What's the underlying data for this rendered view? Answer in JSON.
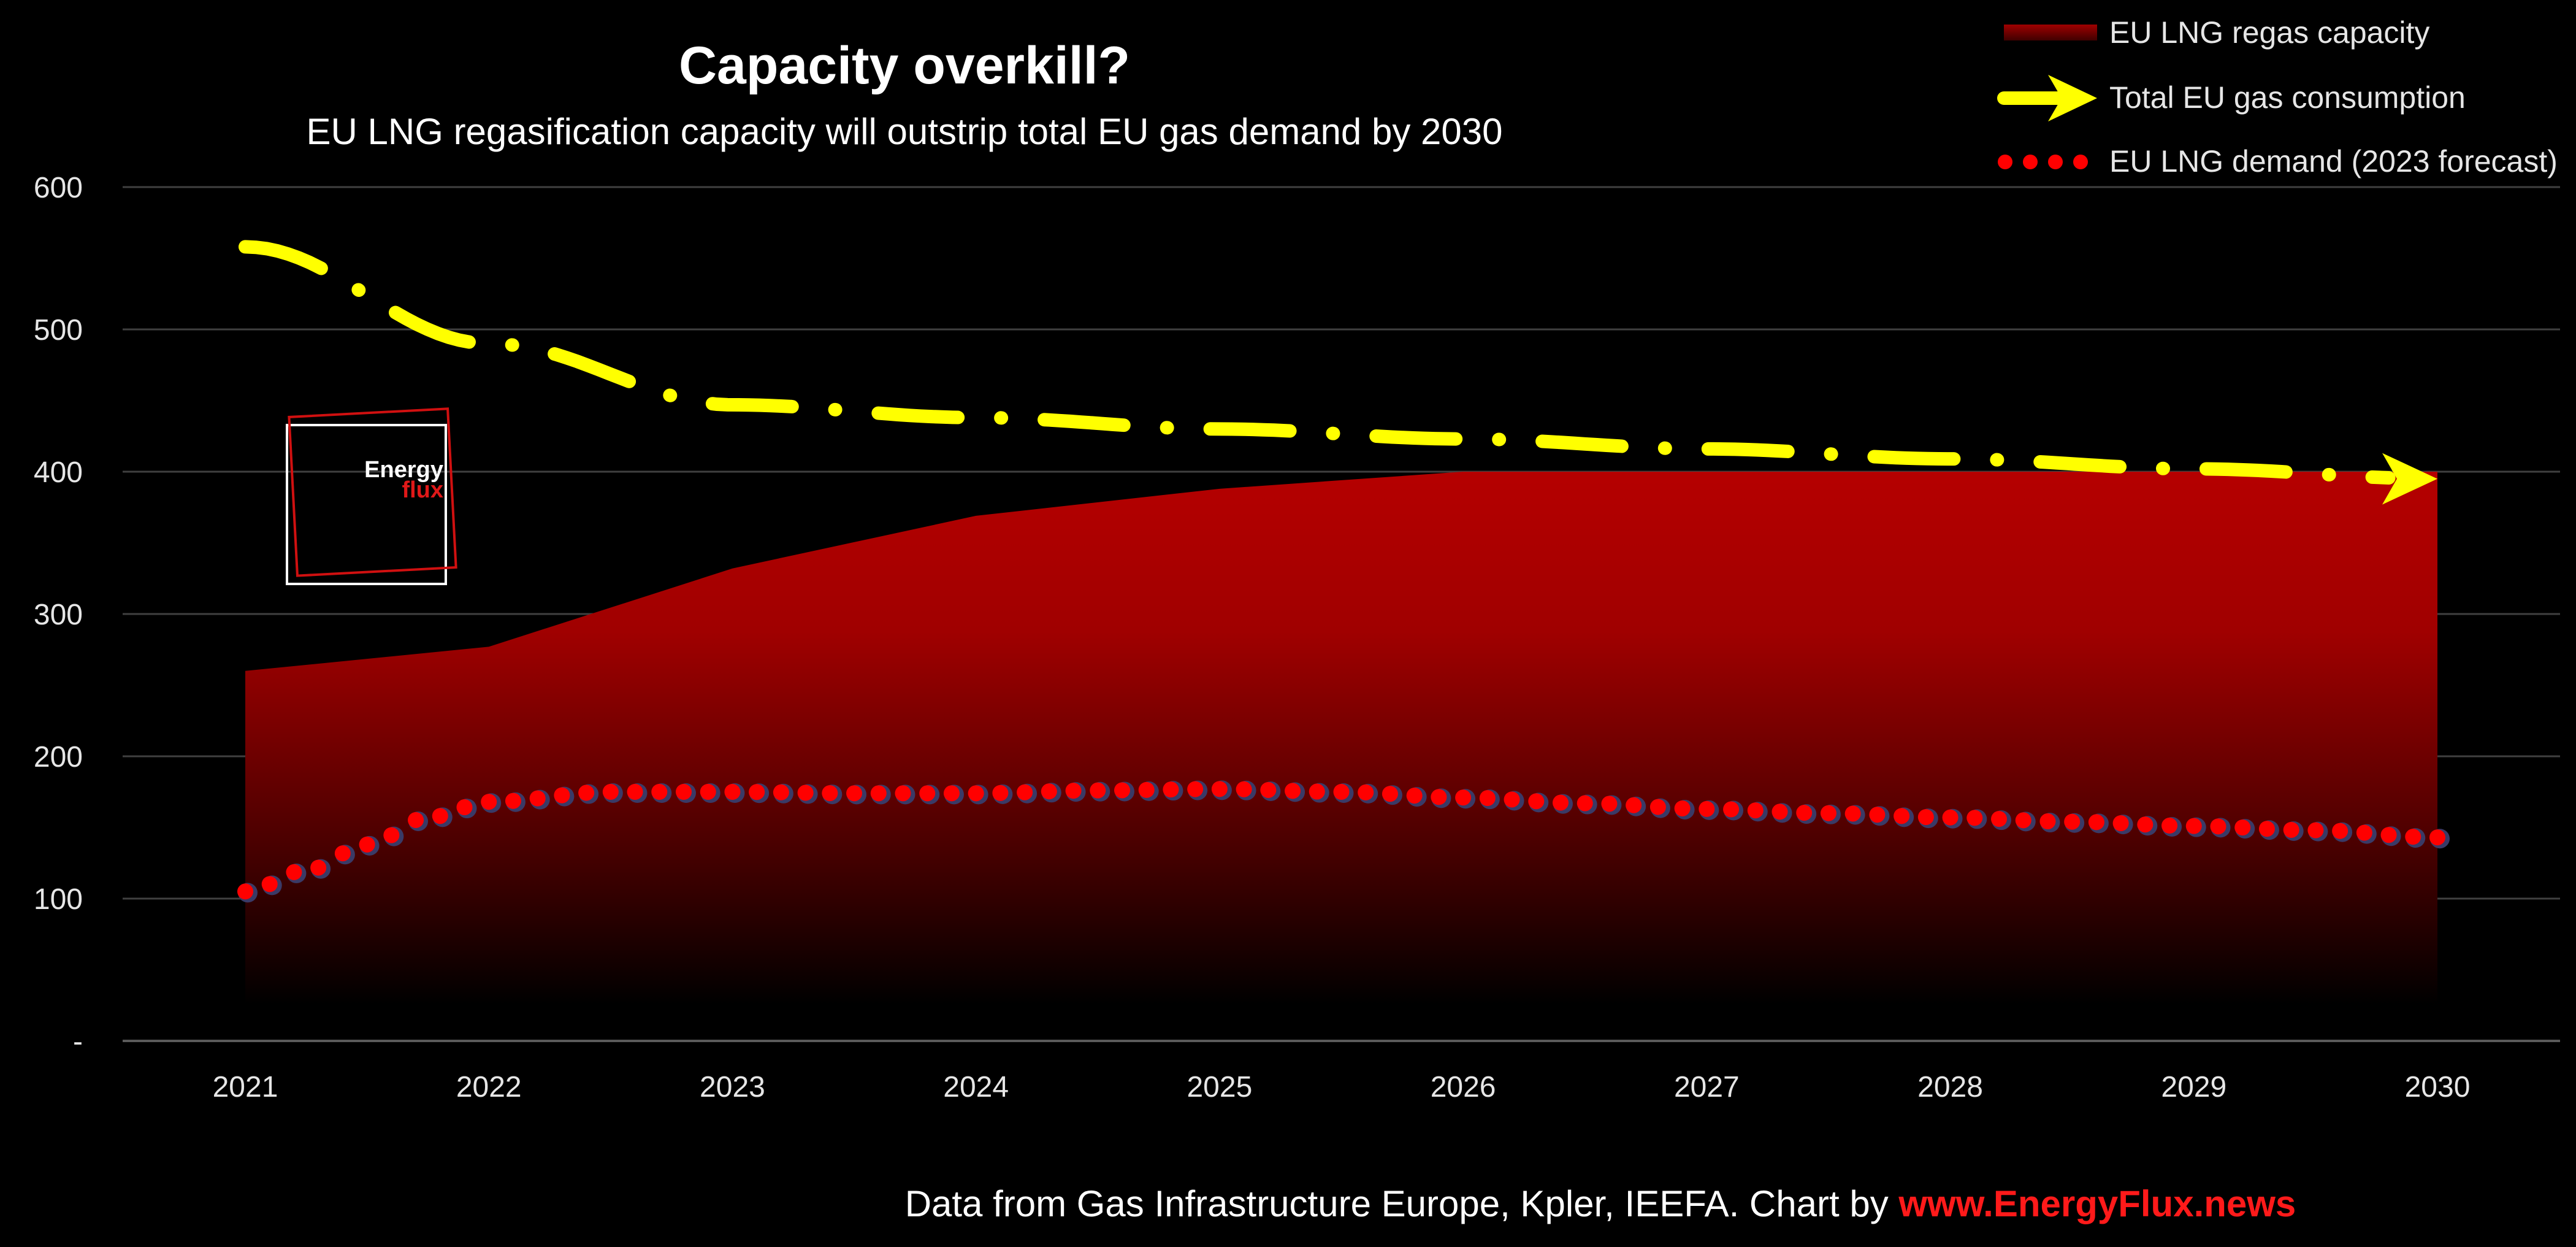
{
  "chart_data": {
    "type": "area",
    "title": "Capacity overkill?",
    "subtitle": "EU LNG regasification capacity will outstrip total EU gas demand by 2030",
    "xlabel": "",
    "ylabel": "",
    "x_ticks": [
      "2021",
      "2022",
      "2023",
      "2024",
      "2025",
      "2026",
      "2027",
      "2028",
      "2029",
      "2030"
    ],
    "y_ticks": [
      "-",
      "100",
      "200",
      "300",
      "400",
      "500",
      "600"
    ],
    "ylim": [
      0,
      600
    ],
    "grid": true,
    "legend_position": "top-right",
    "series": [
      {
        "name": "EU LNG regas capacity",
        "type": "area",
        "color": "#b00000",
        "x": [
          2021,
          2022,
          2023,
          2024,
          2025,
          2026,
          2027,
          2028,
          2029,
          2030
        ],
        "values": [
          260,
          277,
          332,
          369,
          388,
          400,
          400,
          400,
          400,
          400
        ]
      },
      {
        "name": "Total EU gas consumption",
        "type": "line",
        "style": "dash-dot with arrow",
        "color": "#ffff00",
        "x": [
          2021,
          2022,
          2023,
          2024,
          2025,
          2026,
          2027,
          2028,
          2029,
          2030
        ],
        "values": [
          558,
          490,
          447,
          438,
          430,
          423,
          416,
          409,
          402,
          395
        ]
      },
      {
        "name": "EU LNG demand (2023 forecast)",
        "type": "line",
        "style": "dotted",
        "color": "#ff0000",
        "x": [
          2021,
          2021.25,
          2021.5,
          2021.75,
          2022,
          2022.5,
          2023,
          2023.5,
          2024,
          2024.5,
          2025,
          2025.5,
          2026,
          2026.5,
          2027,
          2027.5,
          2028,
          2028.5,
          2029,
          2029.5,
          2030
        ],
        "values": [
          105,
          120,
          138,
          157,
          168,
          175,
          175,
          174,
          174,
          176,
          177,
          175,
          171,
          167,
          163,
          160,
          157,
          154,
          151,
          148,
          143
        ]
      }
    ]
  },
  "source": {
    "prefix": "Data from Gas Infrastructure Europe, Kpler, IEEFA. Chart by ",
    "link": "www.EnergyFlux.news"
  },
  "logo": {
    "line1": "Energy",
    "line2": "flux"
  },
  "colors": {
    "background": "#000000",
    "capacity": "#b00000",
    "consumption": "#ffff00",
    "demand": "#ff0000",
    "demand_halo": "#3a3a66",
    "grid": "#404040",
    "link": "#ff1a1a"
  }
}
